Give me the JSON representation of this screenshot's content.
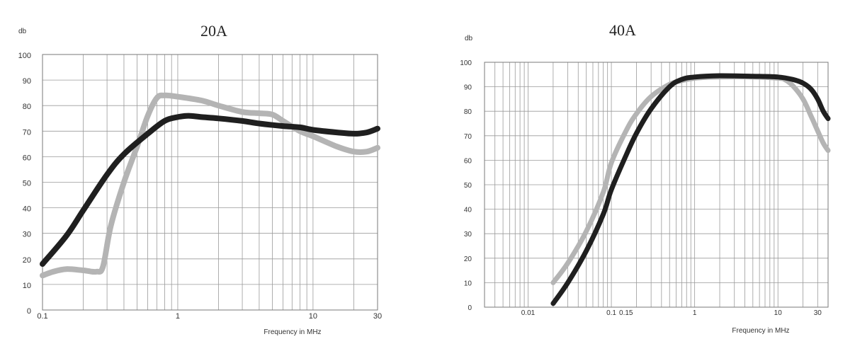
{
  "chart_data": [
    {
      "type": "line",
      "title": "20A",
      "ylabel": "db",
      "xlabel": "Frequency in MHz",
      "xscale": "log",
      "xlim": [
        0.1,
        30
      ],
      "ylim": [
        0,
        100
      ],
      "yticks": [
        "0",
        "10",
        "20",
        "30",
        "40",
        "50",
        "60",
        "70",
        "80",
        "90",
        "100"
      ],
      "xtick_labels": [
        {
          "value": 0.1,
          "label": "0.1"
        },
        {
          "value": 1,
          "label": "1"
        },
        {
          "value": 10,
          "label": "10"
        },
        {
          "value": 30,
          "label": "30"
        }
      ],
      "grid": true,
      "legend": "none",
      "series": [
        {
          "color": "#1f1f1f",
          "x": [
            0.1,
            0.15,
            0.2,
            0.3,
            0.4,
            0.6,
            0.8,
            1.0,
            1.2,
            1.5,
            2,
            3,
            4,
            6,
            8,
            10,
            15,
            20,
            25,
            30
          ],
          "y": [
            18,
            29,
            39,
            53,
            61,
            69,
            74,
            75.5,
            76,
            75.5,
            75,
            74,
            73,
            72,
            71.5,
            70.5,
            69.5,
            69,
            69.5,
            71
          ]
        },
        {
          "color": "#b4b4b4",
          "x": [
            0.1,
            0.12,
            0.15,
            0.2,
            0.25,
            0.28,
            0.32,
            0.4,
            0.5,
            0.6,
            0.7,
            0.8,
            1.0,
            1.5,
            2,
            3,
            4,
            5,
            6,
            8,
            10,
            15,
            20,
            25,
            30
          ],
          "y": [
            13.5,
            15,
            16,
            15.5,
            15,
            17,
            33,
            50,
            64,
            76,
            83,
            84,
            83.5,
            82,
            80,
            77.5,
            77,
            76.5,
            74,
            70,
            68,
            64,
            62,
            62,
            63.5
          ]
        }
      ]
    },
    {
      "type": "line",
      "title": "40A",
      "ylabel": "db",
      "xlabel": "Frequency in MHz",
      "xscale": "log",
      "xlim": [
        0.003,
        40
      ],
      "ylim": [
        0,
        100
      ],
      "yticks": [
        "0",
        "10",
        "20",
        "30",
        "40",
        "50",
        "60",
        "70",
        "80",
        "90",
        "100"
      ],
      "xtick_labels": [
        {
          "value": 0.01,
          "label": "0.01"
        },
        {
          "value": 0.1,
          "label": "0.1"
        },
        {
          "value": 0.15,
          "label": "0.15"
        },
        {
          "value": 1,
          "label": "1"
        },
        {
          "value": 10,
          "label": "10"
        },
        {
          "value": 30,
          "label": "30"
        }
      ],
      "grid": true,
      "legend": "none",
      "series": [
        {
          "color": "#1f1f1f",
          "x": [
            0.02,
            0.03,
            0.05,
            0.08,
            0.1,
            0.15,
            0.2,
            0.3,
            0.5,
            0.7,
            1,
            2,
            5,
            10,
            15,
            20,
            25,
            30,
            35,
            40
          ],
          "y": [
            1.5,
            10,
            23,
            38,
            48,
            62,
            71,
            81,
            90,
            93,
            94,
            94.5,
            94.3,
            94,
            93,
            91.5,
            89,
            85,
            80,
            77
          ]
        },
        {
          "color": "#b4b4b4",
          "x": [
            0.02,
            0.03,
            0.05,
            0.08,
            0.1,
            0.15,
            0.2,
            0.3,
            0.5,
            0.7,
            1,
            2,
            5,
            10,
            12,
            15,
            20,
            25,
            30,
            35,
            40
          ],
          "y": [
            10,
            18,
            31,
            47,
            59,
            72,
            79,
            86,
            91,
            92.5,
            93.5,
            94,
            94,
            93.5,
            93,
            90.5,
            85,
            78,
            72,
            67,
            64
          ]
        }
      ]
    }
  ]
}
